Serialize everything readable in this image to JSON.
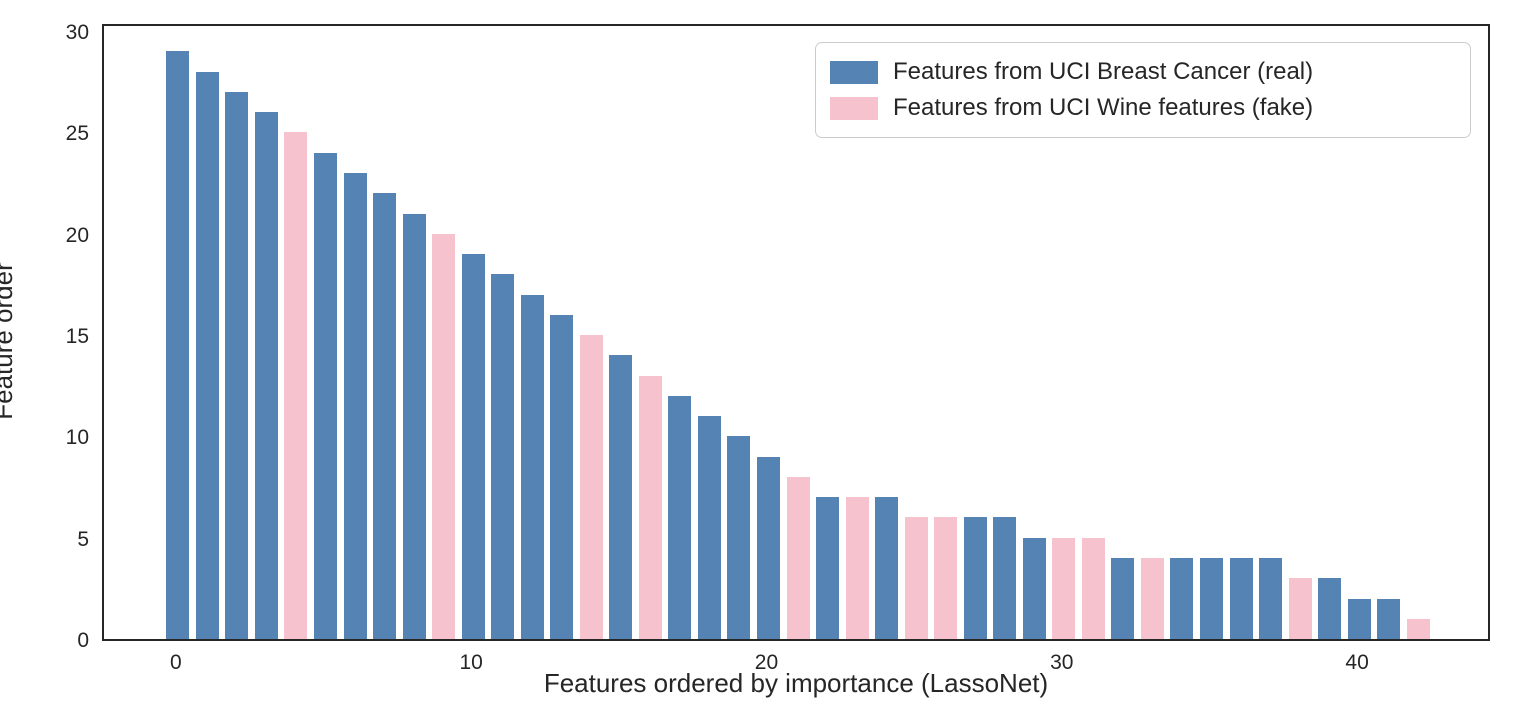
{
  "chart_data": {
    "type": "bar",
    "title": "",
    "xlabel": "Features ordered by importance (LassoNet)",
    "ylabel": "Feature order",
    "x_tick_labels": [
      0,
      10,
      20,
      30,
      40
    ],
    "y_tick_labels": [
      0,
      5,
      10,
      15,
      20,
      25,
      30
    ],
    "xlim": [
      -2.5,
      44.5
    ],
    "ylim": [
      0,
      30.45
    ],
    "bar_width": 0.78,
    "grid": false,
    "x": [
      0,
      1,
      2,
      3,
      4,
      5,
      6,
      7,
      8,
      9,
      10,
      11,
      12,
      13,
      14,
      15,
      16,
      17,
      18,
      19,
      20,
      21,
      22,
      23,
      24,
      25,
      26,
      27,
      28,
      29,
      30,
      31,
      32,
      33,
      34,
      35,
      36,
      37,
      38,
      39,
      40,
      41,
      42
    ],
    "values": [
      29,
      28,
      27,
      26,
      25,
      24,
      23,
      22,
      21,
      20,
      19,
      18,
      17,
      16,
      15,
      14,
      13,
      12,
      11,
      10,
      9,
      8,
      7,
      7,
      7,
      6,
      6,
      6,
      6,
      5,
      5,
      5,
      4,
      4,
      4,
      4,
      4,
      4,
      3,
      3,
      2,
      2,
      1
    ],
    "series_of_bar": [
      "real",
      "real",
      "real",
      "real",
      "fake",
      "real",
      "real",
      "real",
      "real",
      "fake",
      "real",
      "real",
      "real",
      "real",
      "fake",
      "real",
      "fake",
      "real",
      "real",
      "real",
      "real",
      "fake",
      "real",
      "fake",
      "real",
      "fake",
      "fake",
      "real",
      "real",
      "real",
      "fake",
      "fake",
      "real",
      "fake",
      "real",
      "real",
      "real",
      "real",
      "fake",
      "real",
      "real",
      "real",
      "fake"
    ],
    "series_colors": {
      "real": "#5583b4",
      "fake": "#f5c2cd"
    },
    "legend": {
      "position": "upper right",
      "entries": [
        {
          "series": "real",
          "label": "Features from UCI Breast Cancer (real)",
          "color": "#5583b4"
        },
        {
          "series": "fake",
          "label": "Features from UCI Wine features (fake)",
          "color": "#f5c2cd"
        }
      ]
    },
    "axis_color": "#262626",
    "text_color": "#262626"
  }
}
